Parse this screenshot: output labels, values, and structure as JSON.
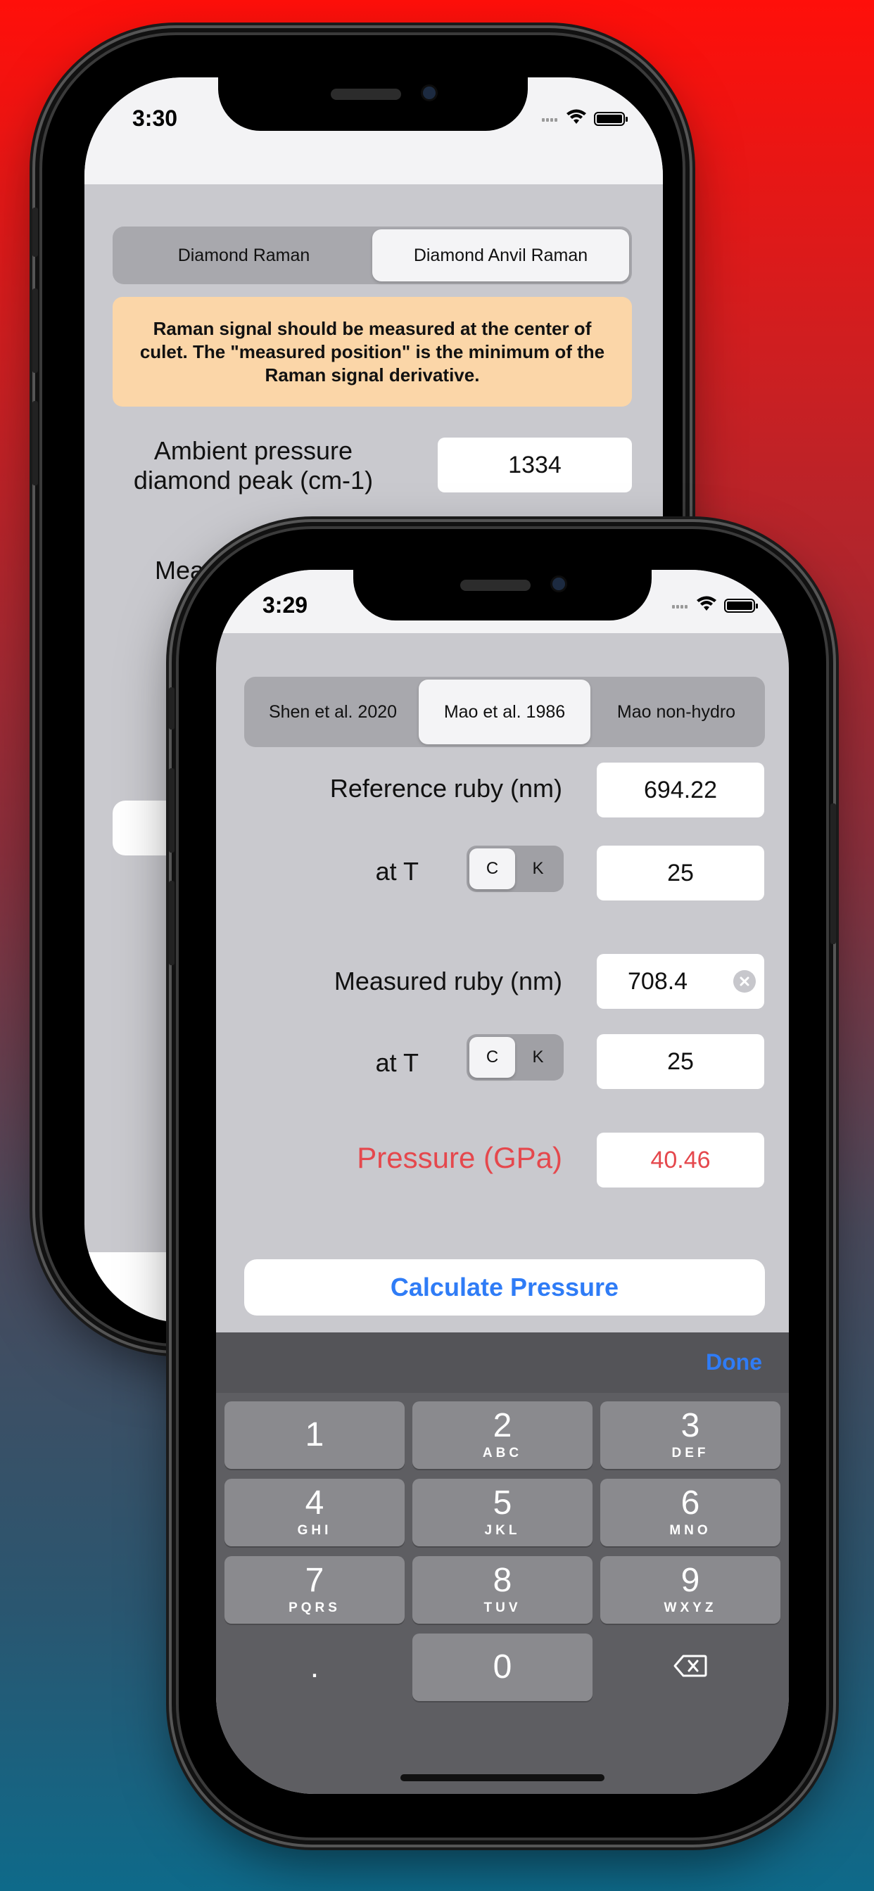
{
  "back_phone": {
    "status_time": "3:30",
    "tabs": [
      {
        "label": "Diamond Raman",
        "selected": false
      },
      {
        "label": "Diamond Anvil Raman",
        "selected": true
      }
    ],
    "notice": "Raman signal should be measured at the center of culet. The \"measured position\" is the minimum of the Raman signal derivative.",
    "ambient_label_line1": "Ambient pressure",
    "ambient_label_line2": "diamond peak (cm-1)",
    "ambient_value": "1334",
    "measured_label_partial": "Meas"
  },
  "front_phone": {
    "status_time": "3:29",
    "tabs": [
      {
        "label": "Shen et al. 2020",
        "selected": false
      },
      {
        "label": "Mao et al. 1986",
        "selected": true
      },
      {
        "label": "Mao non-hydro",
        "selected": false
      }
    ],
    "reference_label": "Reference ruby (nm)",
    "reference_value": "694.22",
    "at_t_label": "at T",
    "unit_c": "C",
    "unit_k": "K",
    "reference_temp": "25",
    "measured_label": "Measured ruby (nm)",
    "measured_value": "708.4",
    "measured_temp": "25",
    "pressure_label": "Pressure (GPa)",
    "pressure_value": "40.46",
    "calculate_label": "Calculate Pressure",
    "keyboard": {
      "done": "Done",
      "keys": [
        {
          "num": "1",
          "letters": ""
        },
        {
          "num": "2",
          "letters": "ABC"
        },
        {
          "num": "3",
          "letters": "DEF"
        },
        {
          "num": "4",
          "letters": "GHI"
        },
        {
          "num": "5",
          "letters": "JKL"
        },
        {
          "num": "6",
          "letters": "MNO"
        },
        {
          "num": "7",
          "letters": "PQRS"
        },
        {
          "num": "8",
          "letters": "TUV"
        },
        {
          "num": "9",
          "letters": "WXYZ"
        }
      ],
      "dot": ".",
      "zero": "0"
    }
  },
  "colors": {
    "accent_blue": "#2f7cf6",
    "pressure_red": "#e5484d",
    "notice_bg": "#fbd6a8"
  }
}
